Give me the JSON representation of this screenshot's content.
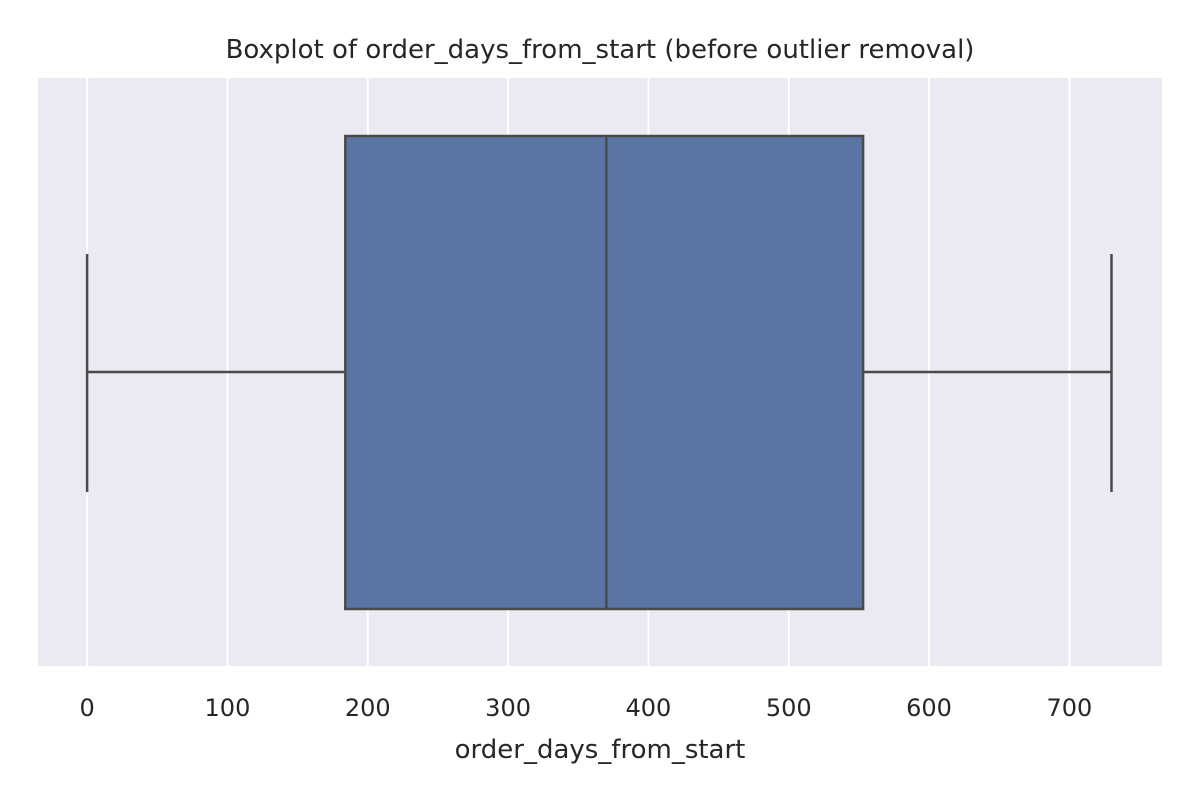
{
  "chart_data": {
    "type": "box",
    "orientation": "horizontal",
    "title": "Boxplot of order_days_from_start (before outlier removal)",
    "xlabel": "order_days_from_start",
    "ylabel": "",
    "xlim": [
      -35,
      766
    ],
    "xticks": [
      0,
      100,
      200,
      300,
      400,
      500,
      600,
      700
    ],
    "grid": true,
    "legend": "none",
    "series": [
      {
        "whisker_low": 0,
        "q1": 184,
        "median": 370,
        "q3": 553,
        "whisker_high": 730,
        "color": "#5975a4"
      }
    ],
    "colors": {
      "plot_background": "#eaeaf2",
      "grid": "#ffffff",
      "box_fill": "#5975a4",
      "box_edge": "#4a4a4a",
      "text": "#262626"
    }
  }
}
